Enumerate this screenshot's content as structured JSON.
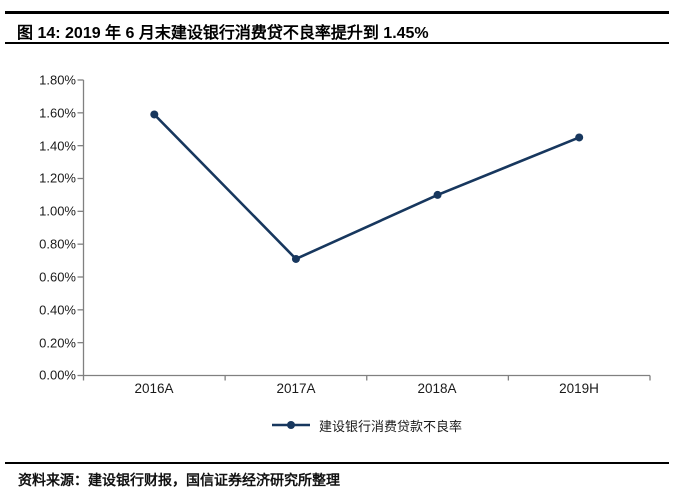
{
  "header": {
    "title": "图 14: 2019 年 6 月末建设银行消费贷不良率提升到 1.45%"
  },
  "chart_data": {
    "type": "line",
    "title": "图 14: 2019 年 6 月末建设银行消费贷不良率提升到 1.45%",
    "categories": [
      "2016A",
      "2017A",
      "2018A",
      "2019H"
    ],
    "series": [
      {
        "name": "建设银行消费贷款不良率",
        "values": [
          1.59,
          0.71,
          1.1,
          1.45
        ]
      }
    ],
    "unit": "%",
    "xlabel": "",
    "ylabel": "",
    "ylim": [
      0,
      1.8
    ],
    "ytick_step": 0.2,
    "ytick_labels": [
      "1.80%",
      "1.60%",
      "1.40%",
      "1.20%",
      "1.00%",
      "0.80%",
      "0.60%",
      "0.40%",
      "0.20%",
      "0.00%"
    ],
    "grid": false,
    "legend_position": "bottom",
    "marker": "circle",
    "line_color": "#17375E",
    "axis_color": "#808080"
  },
  "legend": {
    "label": "建设银行消费贷款不良率"
  },
  "footer": {
    "source": "资料来源：建设银行财报，国信证券经济研究所整理"
  }
}
